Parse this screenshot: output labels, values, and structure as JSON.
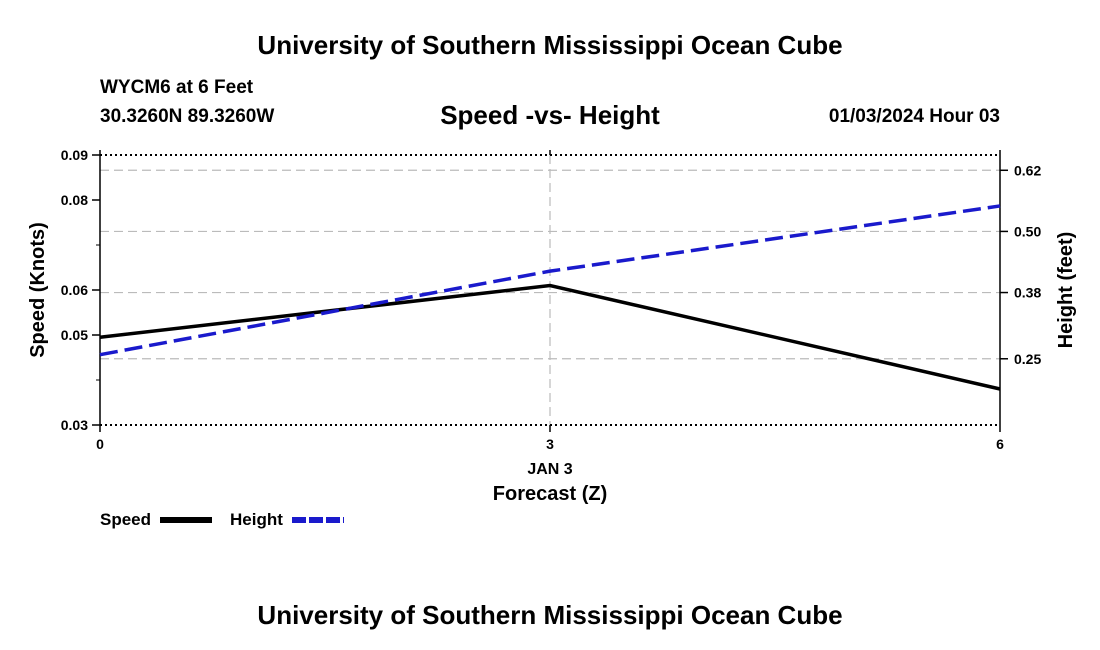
{
  "header": {
    "title": "University of Southern Mississippi Ocean Cube",
    "station": "WYCM6 at 6 Feet",
    "coords": "30.3260N  89.3260W",
    "subtitle": "Speed -vs- Height",
    "datetime": "01/03/2024 Hour 03"
  },
  "footer": {
    "title": "University of Southern Mississippi Ocean Cube"
  },
  "chart_data": {
    "type": "line",
    "x": [
      0,
      3,
      6
    ],
    "x_tick_labels": [
      "0",
      "3",
      "6"
    ],
    "x_date_label": "JAN 3",
    "xlabel": "Forecast (Z)",
    "xlim": [
      0,
      6
    ],
    "left_axis": {
      "label": "Speed (Knots)",
      "ylim": [
        0.03,
        0.09
      ],
      "ticks": [
        0.03,
        0.05,
        0.06,
        0.08,
        0.09
      ],
      "tick_labels": [
        "0.03",
        "0.05",
        "0.06",
        "0.08",
        "0.09"
      ]
    },
    "right_axis": {
      "label": "Height (feet)",
      "ylim": [
        0.12,
        0.65
      ],
      "ticks": [
        0.25,
        0.38,
        0.5,
        0.62
      ],
      "tick_labels": [
        "0.25",
        "0.38",
        "0.50",
        "0.62"
      ]
    },
    "grid": true,
    "series": [
      {
        "name": "Speed",
        "axis": "left",
        "color": "#000000",
        "style": "solid",
        "values": [
          0.0495,
          0.061,
          0.038
        ]
      },
      {
        "name": "Height",
        "axis": "right",
        "color": "#1a1acc",
        "style": "dashed",
        "values": [
          0.258,
          0.422,
          0.55
        ]
      }
    ],
    "legend": {
      "placement": "bottom-left",
      "entries": [
        "Speed",
        "Height"
      ]
    }
  }
}
